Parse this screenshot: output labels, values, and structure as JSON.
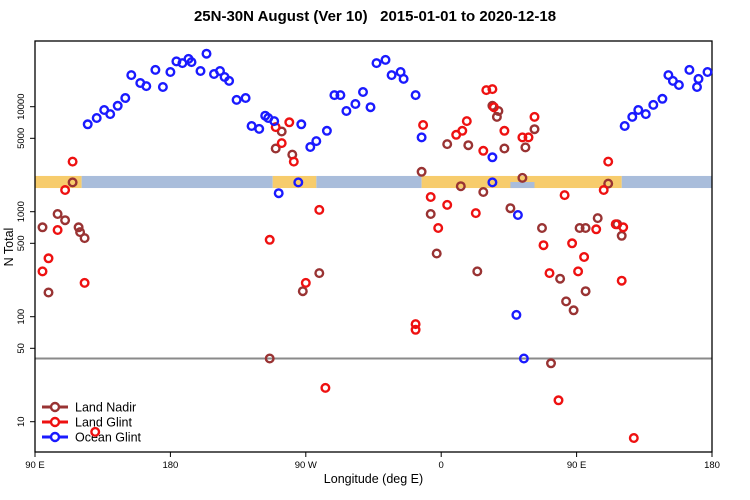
{
  "header": {
    "title": "25N-30N August (Ver 10)   2015-01-01 to 2020-12-18"
  },
  "chart_data": {
    "type": "scatter",
    "title": "25N-30N August (Ver 10)   2015-01-01 to 2020-12-18",
    "xlabel": "Longitude (deg E)",
    "ylabel": "N Total",
    "x_axis": {
      "note": "longitude axis wraps eastward from 90E; stored as degrees 90..540",
      "range_deg": [
        90,
        540
      ],
      "ticks": [
        {
          "deg": 90,
          "label": "90 E"
        },
        {
          "deg": 180,
          "label": "180"
        },
        {
          "deg": 270,
          "label": "90 W"
        },
        {
          "deg": 360,
          "label": "0"
        },
        {
          "deg": 450,
          "label": "90 E"
        },
        {
          "deg": 540,
          "label": "180"
        }
      ]
    },
    "y_axis": {
      "scale": "log",
      "range": [
        5,
        42000
      ],
      "ticks": [
        {
          "value": 10000,
          "label": "10000"
        },
        {
          "value": 5000,
          "label": "5000"
        },
        {
          "value": 1000,
          "label": "1000"
        },
        {
          "value": 500,
          "label": "500"
        },
        {
          "value": 100,
          "label": "100"
        },
        {
          "value": 50,
          "label": "50"
        },
        {
          "value": 10,
          "label": "10"
        }
      ]
    },
    "grid": "off",
    "legend_position": "bottom-left-inside",
    "reference_line": {
      "value": 40,
      "color": "#8a8a8a"
    },
    "highlight_band": {
      "value_range": [
        1680,
        2190
      ],
      "colors": {
        "land": "#F7CC6C",
        "ocean": "#A9BDDB"
      },
      "segments": [
        {
          "from_deg": 90,
          "to_deg": 121,
          "kind": "land"
        },
        {
          "from_deg": 121,
          "to_deg": 248,
          "kind": "ocean"
        },
        {
          "from_deg": 248,
          "to_deg": 277,
          "kind": "land"
        },
        {
          "from_deg": 277,
          "to_deg": 347,
          "kind": "ocean"
        },
        {
          "from_deg": 347,
          "to_deg": 480,
          "kind": "land"
        },
        {
          "from_deg": 480,
          "to_deg": 540,
          "kind": "ocean"
        }
      ],
      "half_height_patches": [
        {
          "from_deg": 406,
          "to_deg": 422,
          "kind": "ocean"
        }
      ]
    },
    "series": [
      {
        "name": "Land Nadir",
        "color": "#993333",
        "points": [
          [
            115,
            1900
          ],
          [
            105,
            950
          ],
          [
            110,
            830
          ],
          [
            95,
            710
          ],
          [
            119,
            710
          ],
          [
            120,
            640
          ],
          [
            123,
            560
          ],
          [
            99,
            170
          ],
          [
            254,
            5800
          ],
          [
            250,
            4000
          ],
          [
            261,
            3500
          ],
          [
            268,
            175
          ],
          [
            279,
            260
          ],
          [
            246,
            40
          ],
          [
            347,
            2400
          ],
          [
            373,
            1750
          ],
          [
            353,
            950
          ],
          [
            357,
            400
          ],
          [
            384,
            270
          ],
          [
            388,
            1540
          ],
          [
            364,
            4400
          ],
          [
            378,
            4300
          ],
          [
            394,
            10200
          ],
          [
            398,
            9100
          ],
          [
            397,
            8000
          ],
          [
            402,
            4000
          ],
          [
            416,
            4100
          ],
          [
            422,
            6100
          ],
          [
            414,
            2100
          ],
          [
            406,
            1080
          ],
          [
            427,
            700
          ],
          [
            439,
            230
          ],
          [
            452,
            700
          ],
          [
            456,
            700
          ],
          [
            464,
            870
          ],
          [
            471,
            1850
          ],
          [
            477,
            760
          ],
          [
            480,
            590
          ],
          [
            443,
            140
          ],
          [
            448,
            115
          ],
          [
            456,
            175
          ],
          [
            433,
            36
          ]
        ]
      },
      {
        "name": "Land Glint",
        "color": "#EE1111",
        "points": [
          [
            115,
            3000
          ],
          [
            110,
            1610
          ],
          [
            105,
            670
          ],
          [
            99,
            360
          ],
          [
            95,
            270
          ],
          [
            123,
            210
          ],
          [
            130,
            8
          ],
          [
            259,
            7100
          ],
          [
            250,
            6400
          ],
          [
            254,
            4500
          ],
          [
            262,
            3000
          ],
          [
            279,
            1040
          ],
          [
            246,
            540
          ],
          [
            270,
            210
          ],
          [
            283,
            21
          ],
          [
            348,
            6700
          ],
          [
            374,
            5900
          ],
          [
            370,
            5400
          ],
          [
            377,
            7300
          ],
          [
            390,
            14400
          ],
          [
            388,
            3800
          ],
          [
            353,
            1380
          ],
          [
            364,
            1160
          ],
          [
            358,
            700
          ],
          [
            383,
            970
          ],
          [
            343,
            85
          ],
          [
            343,
            75
          ],
          [
            394,
            14700
          ],
          [
            395,
            9900
          ],
          [
            402,
            5900
          ],
          [
            422,
            8000
          ],
          [
            414,
            5100
          ],
          [
            418,
            5100
          ],
          [
            442,
            1440
          ],
          [
            428,
            480
          ],
          [
            447,
            500
          ],
          [
            455,
            370
          ],
          [
            451,
            270
          ],
          [
            432,
            260
          ],
          [
            463,
            680
          ],
          [
            481,
            710
          ],
          [
            476,
            760
          ],
          [
            480,
            220
          ],
          [
            468,
            1610
          ],
          [
            471,
            3000
          ],
          [
            438,
            16
          ],
          [
            488,
            7
          ]
        ]
      },
      {
        "name": "Ocean Glint",
        "color": "#1A1AFF",
        "points": [
          [
            125,
            6800
          ],
          [
            131,
            7800
          ],
          [
            136,
            9300
          ],
          [
            140,
            8500
          ],
          [
            145,
            10200
          ],
          [
            150,
            12100
          ],
          [
            154,
            20000
          ],
          [
            160,
            16800
          ],
          [
            164,
            15700
          ],
          [
            170,
            22400
          ],
          [
            175,
            15400
          ],
          [
            180,
            21400
          ],
          [
            184,
            27000
          ],
          [
            188,
            26000
          ],
          [
            192,
            28500
          ],
          [
            194,
            26600
          ],
          [
            200,
            21900
          ],
          [
            204,
            32000
          ],
          [
            209,
            20500
          ],
          [
            213,
            21900
          ],
          [
            216,
            19200
          ],
          [
            219,
            17600
          ],
          [
            224,
            11600
          ],
          [
            230,
            12100
          ],
          [
            234,
            6550
          ],
          [
            239,
            6140
          ],
          [
            243,
            8200
          ],
          [
            245,
            7800
          ],
          [
            249,
            7300
          ],
          [
            267,
            6800
          ],
          [
            273,
            4130
          ],
          [
            277,
            4700
          ],
          [
            284,
            5900
          ],
          [
            289,
            12900
          ],
          [
            293,
            12900
          ],
          [
            297,
            9100
          ],
          [
            303,
            10600
          ],
          [
            308,
            13800
          ],
          [
            313,
            9900
          ],
          [
            317,
            26000
          ],
          [
            323,
            27900
          ],
          [
            327,
            20000
          ],
          [
            333,
            21400
          ],
          [
            335,
            18400
          ],
          [
            343,
            12900
          ],
          [
            347,
            5100
          ],
          [
            265,
            1900
          ],
          [
            252,
            1500
          ],
          [
            394,
            3300
          ],
          [
            394,
            1900
          ],
          [
            411,
            930
          ],
          [
            410,
            104
          ],
          [
            415,
            40
          ],
          [
            482,
            6550
          ],
          [
            487,
            8000
          ],
          [
            491,
            9300
          ],
          [
            496,
            8500
          ],
          [
            501,
            10400
          ],
          [
            507,
            11900
          ],
          [
            511,
            20000
          ],
          [
            514,
            17600
          ],
          [
            518,
            16100
          ],
          [
            525,
            22400
          ],
          [
            530,
            15400
          ],
          [
            531,
            18400
          ],
          [
            537,
            21400
          ]
        ]
      }
    ],
    "legend": {
      "items": [
        "Land Nadir",
        "Land Glint",
        "Ocean Glint"
      ]
    }
  },
  "style_colors": {
    "axis": "#000000",
    "reference_line": "#8a8a8a",
    "band_land": "#F7CC6C",
    "band_ocean": "#A9BDDB"
  }
}
